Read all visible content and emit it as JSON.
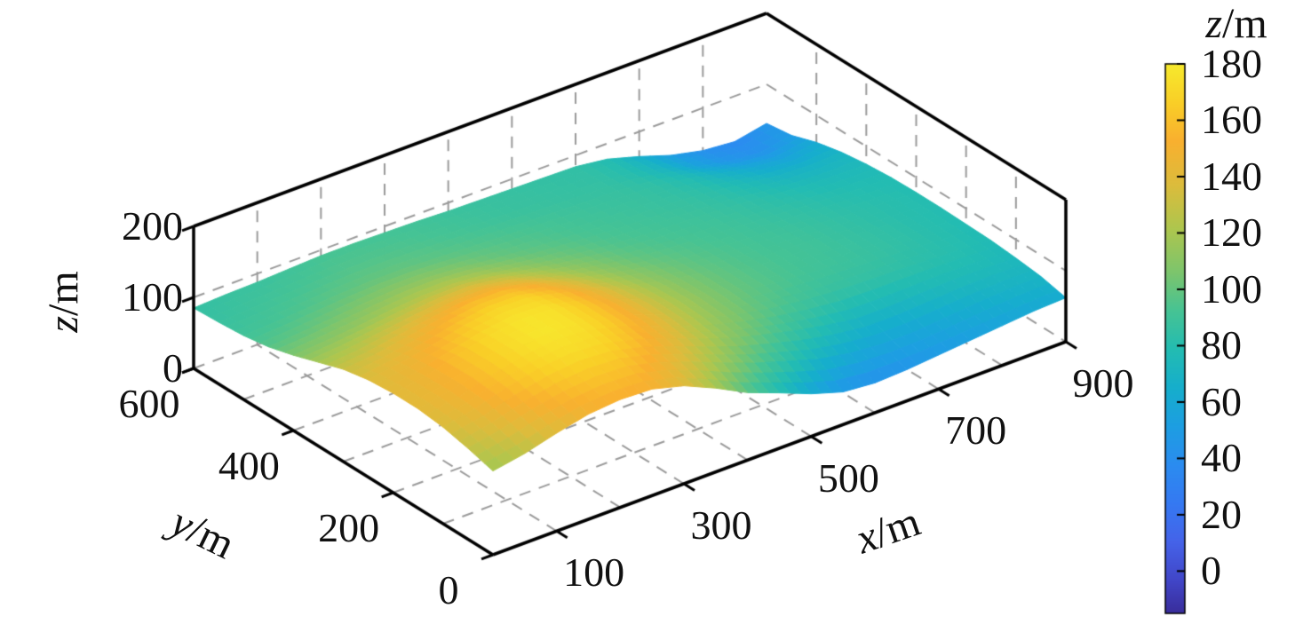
{
  "chart_data": {
    "type": "surface",
    "title": "",
    "x_axis": {
      "label_symbol": "x",
      "label_unit": "/m",
      "ticks": [
        100,
        300,
        500,
        700,
        900
      ],
      "range": [
        0,
        900
      ]
    },
    "y_axis": {
      "label_symbol": "y",
      "label_unit": "/m",
      "ticks": [
        0,
        200,
        400,
        600
      ],
      "range": [
        0,
        600
      ]
    },
    "z_axis": {
      "label_symbol": "z",
      "label_unit": "/m",
      "ticks": [
        0,
        100,
        200
      ],
      "range": [
        0,
        200
      ]
    },
    "colorbar": {
      "title_symbol": "z",
      "title_unit": "/m",
      "ticks": [
        0,
        20,
        40,
        60,
        80,
        100,
        120,
        140,
        160,
        180
      ],
      "caxis": [
        -15,
        180
      ],
      "colormap": "parula",
      "stops": [
        {
          "pos": 0.0,
          "color": "#392d9b"
        },
        {
          "pos": 0.06,
          "color": "#4146c8"
        },
        {
          "pos": 0.13,
          "color": "#4563e9"
        },
        {
          "pos": 0.2,
          "color": "#3579f2"
        },
        {
          "pos": 0.27,
          "color": "#2b8cf0"
        },
        {
          "pos": 0.34,
          "color": "#1d9ee2"
        },
        {
          "pos": 0.41,
          "color": "#16aecc"
        },
        {
          "pos": 0.48,
          "color": "#23bcb2"
        },
        {
          "pos": 0.55,
          "color": "#46c394"
        },
        {
          "pos": 0.62,
          "color": "#7cc56d"
        },
        {
          "pos": 0.7,
          "color": "#aec64e"
        },
        {
          "pos": 0.78,
          "color": "#dcbc3c"
        },
        {
          "pos": 0.86,
          "color": "#f9b02f"
        },
        {
          "pos": 0.93,
          "color": "#f9cf27"
        },
        {
          "pos": 1.0,
          "color": "#f7ea2d"
        }
      ]
    },
    "grid": {
      "step": 100,
      "style": "dashed",
      "color": "#9a9a9a"
    },
    "surface": {
      "x_values": [
        0,
        50,
        100,
        150,
        200,
        250,
        300,
        350,
        400,
        450,
        500,
        550,
        600,
        650,
        700,
        750,
        800,
        850,
        900
      ],
      "y_values": [
        0,
        50,
        100,
        150,
        200,
        250,
        300,
        350,
        400,
        450,
        500,
        550,
        600
      ],
      "z_grid": [
        [
          118,
          126,
          138,
          148,
          152,
          150,
          138,
          118,
          95,
          78,
          60,
          46,
          42,
          44,
          48,
          52,
          56,
          60,
          62
        ],
        [
          128,
          137,
          149,
          158,
          162,
          160,
          149,
          133,
          115,
          98,
          84,
          70,
          62,
          58,
          58,
          62,
          66,
          69,
          70
        ],
        [
          136,
          145,
          158,
          168,
          173,
          170,
          159,
          144,
          127,
          111,
          99,
          88,
          79,
          72,
          72,
          74,
          76,
          76,
          74
        ],
        [
          140,
          148,
          161,
          172,
          178,
          175,
          164,
          149,
          132,
          117,
          106,
          97,
          91,
          87,
          85,
          84,
          82,
          80,
          77
        ],
        [
          140,
          147,
          160,
          171,
          177,
          175,
          164,
          149,
          133,
          119,
          108,
          100,
          95,
          91,
          89,
          87,
          84,
          81,
          78
        ],
        [
          137,
          144,
          152,
          163,
          170,
          169,
          159,
          145,
          130,
          117,
          107,
          100,
          95,
          92,
          90,
          87,
          84,
          81,
          79
        ],
        [
          130,
          134,
          142,
          150,
          157,
          157,
          149,
          136,
          123,
          112,
          104,
          98,
          94,
          91,
          89,
          86,
          83,
          81,
          79
        ],
        [
          118,
          122,
          128,
          134,
          139,
          140,
          134,
          124,
          114,
          106,
          99,
          95,
          92,
          90,
          87,
          84,
          81,
          79,
          78
        ],
        [
          106,
          109,
          113,
          118,
          122,
          123,
          119,
          112,
          105,
          100,
          95,
          92,
          90,
          88,
          85,
          81,
          77,
          75,
          75
        ],
        [
          96,
          99,
          103,
          107,
          110,
          110,
          107,
          102,
          98,
          95,
          92,
          90,
          88,
          86,
          82,
          76,
          70,
          68,
          70
        ],
        [
          90,
          92,
          95,
          98,
          100,
          100,
          98,
          96,
          94,
          92,
          90,
          88,
          87,
          84,
          78,
          68,
          60,
          56,
          62
        ],
        [
          87,
          89,
          91,
          93,
          95,
          95,
          94,
          92,
          90,
          88,
          87,
          86,
          85,
          80,
          70,
          56,
          46,
          42,
          50
        ],
        [
          85,
          87,
          88,
          90,
          92,
          92,
          91,
          90,
          88,
          87,
          86,
          85,
          84,
          78,
          65,
          50,
          40,
          36,
          45
        ]
      ]
    }
  }
}
